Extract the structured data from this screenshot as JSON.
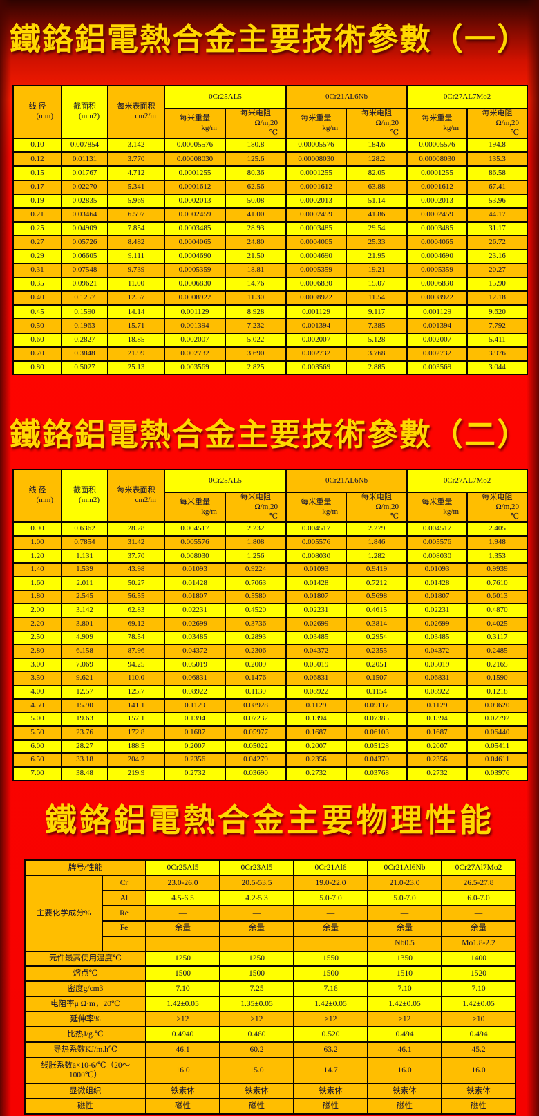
{
  "titles": {
    "t1": "鐵鉻鋁電熱合金主要技術參數（一）",
    "t2": "鐵鉻鋁電熱合金主要技術參數（二）",
    "t3": "鐵鉻鋁電熱合金主要物理性能"
  },
  "colors": {
    "cell_gold": "#FFBE00",
    "cell_yellow": "#FFFF00",
    "background_red": "#FF0000",
    "title_yellow": "#FFD800",
    "table_text": "#0D0D33",
    "border_black": "#0A0500"
  },
  "params_table_header": {
    "wire_diameter": "线 径",
    "wire_diameter_unit": "(mm)",
    "cross_section": "截面积",
    "cross_section_unit": "(mm2)",
    "surface_area": "每米表面积",
    "surface_area_unit": "cm2/m",
    "alloys": [
      "0Cr25AL5",
      "0Cr21AL6Nb",
      "0Cr27AL7Mo2"
    ],
    "weight_per_meter": "每米重量",
    "weight_unit": "kg/m",
    "resistance_per_meter": "每米电阻",
    "resistance_unit": "Ω/m,20",
    "resistance_unit_line2": "℃"
  },
  "table1_rows": [
    [
      "0.10",
      "0.007854",
      "3.142",
      "0.00005576",
      "180.8",
      "0.00005576",
      "184.6",
      "0.00005576",
      "194.8"
    ],
    [
      "0.12",
      "0.01131",
      "3.770",
      "0.00008030",
      "125.6",
      "0.00008030",
      "128.2",
      "0.00008030",
      "135.3"
    ],
    [
      "0.15",
      "0.01767",
      "4.712",
      "0.0001255",
      "80.36",
      "0.0001255",
      "82.05",
      "0.0001255",
      "86.58"
    ],
    [
      "0.17",
      "0.02270",
      "5.341",
      "0.0001612",
      "62.56",
      "0.0001612",
      "63.88",
      "0.0001612",
      "67.41"
    ],
    [
      "0.19",
      "0.02835",
      "5.969",
      "0.0002013",
      "50.08",
      "0.0002013",
      "51.14",
      "0.0002013",
      "53.96"
    ],
    [
      "0.21",
      "0.03464",
      "6.597",
      "0.0002459",
      "41.00",
      "0.0002459",
      "41.86",
      "0.0002459",
      "44.17"
    ],
    [
      "0.25",
      "0.04909",
      "7.854",
      "0.0003485",
      "28.93",
      "0.0003485",
      "29.54",
      "0.0003485",
      "31.17"
    ],
    [
      "0.27",
      "0.05726",
      "8.482",
      "0.0004065",
      "24.80",
      "0.0004065",
      "25.33",
      "0.0004065",
      "26.72"
    ],
    [
      "0.29",
      "0.06605",
      "9.111",
      "0.0004690",
      "21.50",
      "0.0004690",
      "21.95",
      "0.0004690",
      "23.16"
    ],
    [
      "0.31",
      "0.07548",
      "9.739",
      "0.0005359",
      "18.81",
      "0.0005359",
      "19.21",
      "0.0005359",
      "20.27"
    ],
    [
      "0.35",
      "0.09621",
      "11.00",
      "0.0006830",
      "14.76",
      "0.0006830",
      "15.07",
      "0.0006830",
      "15.90"
    ],
    [
      "0.40",
      "0.1257",
      "12.57",
      "0.0008922",
      "11.30",
      "0.0008922",
      "11.54",
      "0.0008922",
      "12.18"
    ],
    [
      "0.45",
      "0.1590",
      "14.14",
      "0.001129",
      "8.928",
      "0.001129",
      "9.117",
      "0.001129",
      "9.620"
    ],
    [
      "0.50",
      "0.1963",
      "15.71",
      "0.001394",
      "7.232",
      "0.001394",
      "7.385",
      "0.001394",
      "7.792"
    ],
    [
      "0.60",
      "0.2827",
      "18.85",
      "0.002007",
      "5.022",
      "0.002007",
      "5.128",
      "0.002007",
      "5.411"
    ],
    [
      "0.70",
      "0.3848",
      "21.99",
      "0.002732",
      "3.690",
      "0.002732",
      "3.768",
      "0.002732",
      "3.976"
    ],
    [
      "0.80",
      "0.5027",
      "25.13",
      "0.003569",
      "2.825",
      "0.003569",
      "2.885",
      "0.003569",
      "3.044"
    ]
  ],
  "table2_rows": [
    [
      "0.90",
      "0.6362",
      "28.28",
      "0.004517",
      "2.232",
      "0.004517",
      "2.279",
      "0.004517",
      "2.405"
    ],
    [
      "1.00",
      "0.7854",
      "31.42",
      "0.005576",
      "1.808",
      "0.005576",
      "1.846",
      "0.005576",
      "1.948"
    ],
    [
      "1.20",
      "1.131",
      "37.70",
      "0.008030",
      "1.256",
      "0.008030",
      "1.282",
      "0.008030",
      "1.353"
    ],
    [
      "1.40",
      "1.539",
      "43.98",
      "0.01093",
      "0.9224",
      "0.01093",
      "0.9419",
      "0.01093",
      "0.9939"
    ],
    [
      "1.60",
      "2.011",
      "50.27",
      "0.01428",
      "0.7063",
      "0.01428",
      "0.7212",
      "0.01428",
      "0.7610"
    ],
    [
      "1.80",
      "2.545",
      "56.55",
      "0.01807",
      "0.5580",
      "0.01807",
      "0.5698",
      "0.01807",
      "0.6013"
    ],
    [
      "2.00",
      "3.142",
      "62.83",
      "0.02231",
      "0.4520",
      "0.02231",
      "0.4615",
      "0.02231",
      "0.4870"
    ],
    [
      "2.20",
      "3.801",
      "69.12",
      "0.02699",
      "0.3736",
      "0.02699",
      "0.3814",
      "0.02699",
      "0.4025"
    ],
    [
      "2.50",
      "4.909",
      "78.54",
      "0.03485",
      "0.2893",
      "0.03485",
      "0.2954",
      "0.03485",
      "0.3117"
    ],
    [
      "2.80",
      "6.158",
      "87.96",
      "0.04372",
      "0.2306",
      "0.04372",
      "0.2355",
      "0.04372",
      "0.2485"
    ],
    [
      "3.00",
      "7.069",
      "94.25",
      "0.05019",
      "0.2009",
      "0.05019",
      "0.2051",
      "0.05019",
      "0.2165"
    ],
    [
      "3.50",
      "9.621",
      "110.0",
      "0.06831",
      "0.1476",
      "0.06831",
      "0.1507",
      "0.06831",
      "0.1590"
    ],
    [
      "4.00",
      "12.57",
      "125.7",
      "0.08922",
      "0.1130",
      "0.08922",
      "0.1154",
      "0.08922",
      "0.1218"
    ],
    [
      "4.50",
      "15.90",
      "141.1",
      "0.1129",
      "0.08928",
      "0.1129",
      "0.09117",
      "0.1129",
      "0.09620"
    ],
    [
      "5.00",
      "19.63",
      "157.1",
      "0.1394",
      "0.07232",
      "0.1394",
      "0.07385",
      "0.1394",
      "0.07792"
    ],
    [
      "5.50",
      "23.76",
      "172.8",
      "0.1687",
      "0.05977",
      "0.1687",
      "0.06103",
      "0.1687",
      "0.06440"
    ],
    [
      "6.00",
      "28.27",
      "188.5",
      "0.2007",
      "0.05022",
      "0.2007",
      "0.05128",
      "0.2007",
      "0.05411"
    ],
    [
      "6.50",
      "33.18",
      "204.2",
      "0.2356",
      "0.04279",
      "0.2356",
      "0.04370",
      "0.2356",
      "0.04611"
    ],
    [
      "7.00",
      "38.48",
      "219.9",
      "0.2732",
      "0.03690",
      "0.2732",
      "0.03768",
      "0.2732",
      "0.03976"
    ]
  ],
  "physical_table": {
    "header_label": "牌号/性能",
    "alloys": [
      "0Cr25Al5",
      "0Cr23Al5",
      "0Cr21Al6",
      "0Cr21Al6Nb",
      "0Cr27Al7Mo2"
    ],
    "chem_group_label": "主要化学成分%",
    "chem_rows": [
      {
        "element": "Cr",
        "values": [
          "23.0-26.0",
          "20.5-53.5",
          "19.0-22.0",
          "21.0-23.0",
          "26.5-27.8"
        ]
      },
      {
        "element": "Al",
        "values": [
          "4.5-6.5",
          "4.2-5.3",
          "5.0-7.0",
          "5.0-7.0",
          "6.0-7.0"
        ]
      },
      {
        "element": "Re",
        "values": [
          "—",
          "—",
          "—",
          "—",
          "—"
        ]
      },
      {
        "element": "Fe",
        "values": [
          "余量",
          "余量",
          "余量",
          "余量",
          "余量"
        ]
      },
      {
        "element": "",
        "values": [
          "",
          "",
          "",
          "Nb0.5",
          "Mo1.8-2.2"
        ]
      }
    ],
    "property_rows": [
      {
        "label": "元件最高使用温度℃",
        "values": [
          "1250",
          "1250",
          "1550",
          "1350",
          "1400"
        ]
      },
      {
        "label": "熔点℃",
        "values": [
          "1500",
          "1500",
          "1500",
          "1510",
          "1520"
        ]
      },
      {
        "label": "密度g/cm3",
        "values": [
          "7.10",
          "7.25",
          "7.16",
          "7.10",
          "7.10"
        ]
      },
      {
        "label": "电阻率μ Ω·m，20℃",
        "values": [
          "1.42±0.05",
          "1.35±0.05",
          "1.42±0.05",
          "1.42±0.05",
          "1.42±0.05"
        ]
      },
      {
        "label": "延伸率%",
        "values": [
          "≥12",
          "≥12",
          "≥12",
          "≥12",
          "≥10"
        ]
      },
      {
        "label": "比热J/g.℃",
        "values": [
          "0.4940",
          "0.460",
          "0.520",
          "0.494",
          "0.494"
        ]
      },
      {
        "label": "导热系数KJ/m.h℃",
        "values": [
          "46.1",
          "60.2",
          "63.2",
          "46.1",
          "45.2"
        ]
      },
      {
        "label": "线胀系数a×10-6/℃（20～1000℃）",
        "values": [
          "16.0",
          "15.0",
          "14.7",
          "16.0",
          "16.0"
        ]
      },
      {
        "label": "显微组织",
        "values": [
          "铁素体",
          "铁素体",
          "铁素体",
          "铁素体",
          "铁素体"
        ]
      },
      {
        "label": "磁性",
        "values": [
          "磁性",
          "磁性",
          "磁性",
          "磁性",
          "磁性"
        ]
      }
    ]
  }
}
